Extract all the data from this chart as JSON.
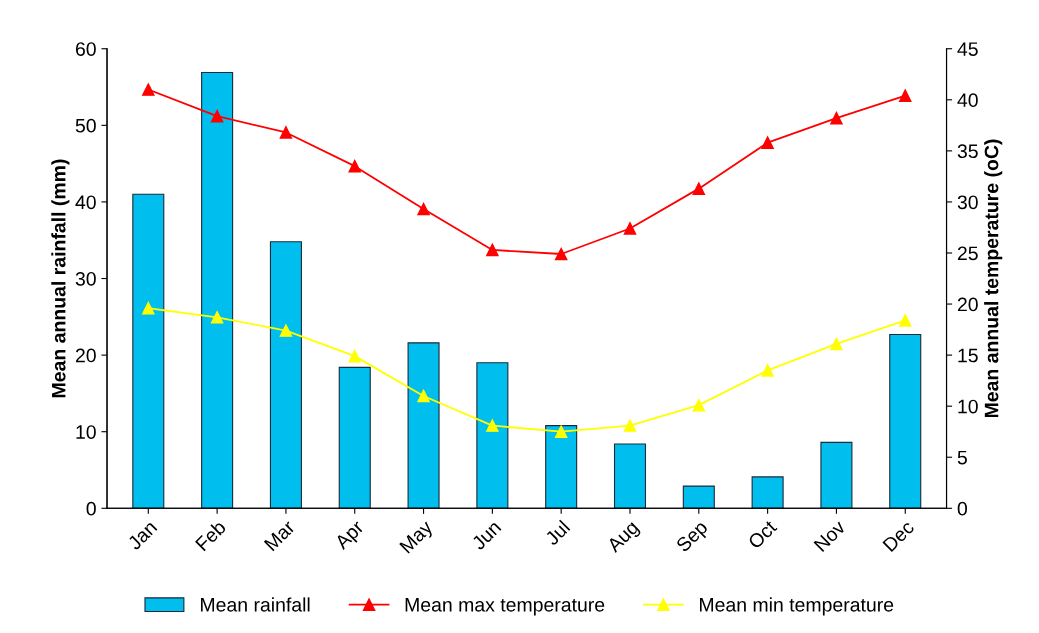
{
  "chart_data": {
    "type": "bar",
    "categories": [
      "Jan",
      "Feb",
      "Mar",
      "Apr",
      "May",
      "Jun",
      "Jul",
      "Aug",
      "Sep",
      "Oct",
      "Nov",
      "Dec"
    ],
    "ylabel": "Mean annual rainfall (mm)",
    "y2label": "Mean annual temperature (oC)",
    "ylim": [
      0,
      60
    ],
    "yticks": [
      0,
      10,
      20,
      30,
      40,
      50,
      60
    ],
    "y2lim": [
      0,
      45
    ],
    "y2ticks": [
      0,
      5,
      10,
      15,
      20,
      25,
      30,
      35,
      40,
      45
    ],
    "series": [
      {
        "name": "Mean rainfall",
        "color": "#00bfef",
        "values": [
          41.0,
          56.9,
          34.8,
          18.4,
          21.6,
          19.0,
          10.8,
          8.4,
          2.9,
          4.1,
          8.6,
          22.7
        ]
      },
      {
        "name": "Mean max temperature",
        "type": "line",
        "axis": "y2",
        "color": "#ff0000",
        "marker": "triangle",
        "values": [
          41.0,
          38.4,
          36.8,
          33.5,
          29.3,
          25.3,
          24.9,
          27.4,
          31.3,
          35.8,
          38.2,
          40.4
        ]
      },
      {
        "name": "Mean min temperature",
        "type": "line",
        "axis": "y2",
        "color": "#ffff00",
        "marker": "triangle",
        "values": [
          19.6,
          18.7,
          17.4,
          14.9,
          11.0,
          8.1,
          7.5,
          8.1,
          10.1,
          13.5,
          16.1,
          18.4
        ]
      }
    ],
    "legend": "bottom",
    "grid": false
  }
}
